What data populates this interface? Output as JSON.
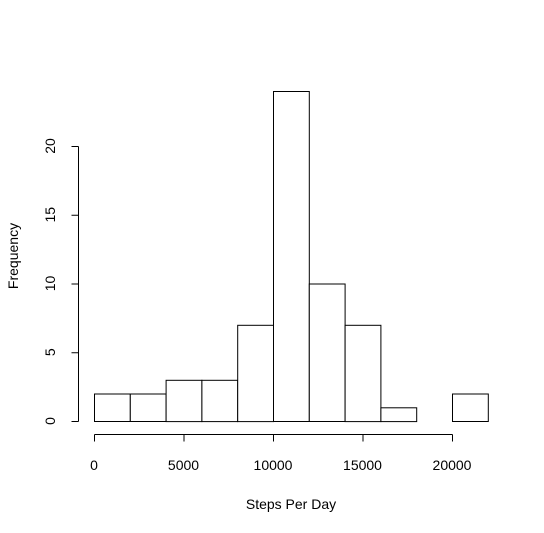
{
  "chart_data": {
    "type": "bar",
    "title": "",
    "xlabel": "Steps Per Day",
    "ylabel": "Frequency",
    "bins": [
      {
        "x0": 0,
        "x1": 2000,
        "count": 2
      },
      {
        "x0": 2000,
        "x1": 4000,
        "count": 2
      },
      {
        "x0": 4000,
        "x1": 6000,
        "count": 3
      },
      {
        "x0": 6000,
        "x1": 8000,
        "count": 3
      },
      {
        "x0": 8000,
        "x1": 10000,
        "count": 7
      },
      {
        "x0": 10000,
        "x1": 12000,
        "count": 24
      },
      {
        "x0": 12000,
        "x1": 14000,
        "count": 10
      },
      {
        "x0": 14000,
        "x1": 16000,
        "count": 7
      },
      {
        "x0": 16000,
        "x1": 18000,
        "count": 1
      },
      {
        "x0": 18000,
        "x1": 20000,
        "count": 0
      },
      {
        "x0": 20000,
        "x1": 22000,
        "count": 2
      }
    ],
    "x_ticks": [
      0,
      5000,
      10000,
      15000,
      20000
    ],
    "y_ticks": [
      0,
      5,
      10,
      15,
      20
    ],
    "xlim": [
      0,
      22000
    ],
    "ylim": [
      0,
      24
    ],
    "grid": false,
    "colors": {
      "bar_fill": "#ffffff",
      "bar_stroke": "#000000"
    }
  }
}
